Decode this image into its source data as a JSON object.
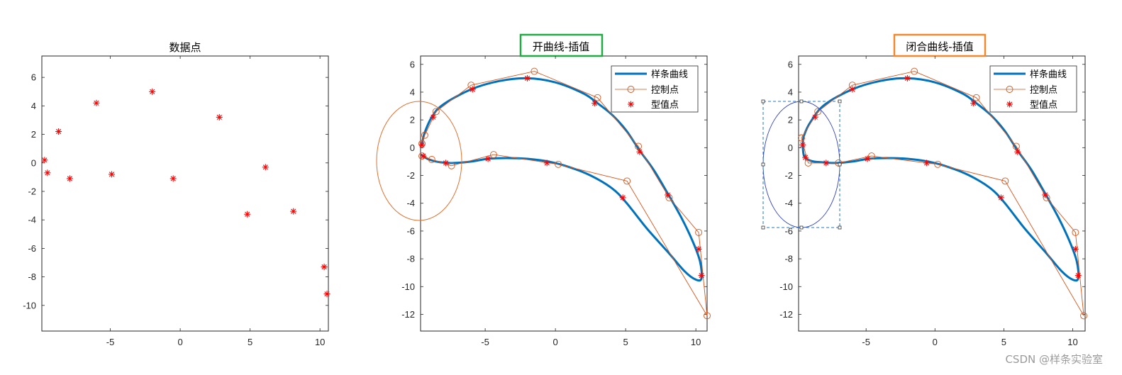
{
  "watermark": "CSDN @样条实验室",
  "colors": {
    "spline": "#0072BD",
    "control": "#D95319",
    "data_point": "#FF0000",
    "green_box": "#22AA44",
    "orange_box": "#F08A30",
    "ellipse_orange": "#E07030",
    "ellipse_blue": "#3040C0",
    "selection_box": "#1F77C8"
  },
  "chart_data": [
    {
      "type": "scatter",
      "title": "数据点",
      "xlim": [
        -9.9,
        10.6
      ],
      "ylim": [
        -11.8,
        7.5
      ],
      "xticks": [
        -5,
        0,
        5,
        10
      ],
      "yticks": [
        6,
        4,
        2,
        0,
        -2,
        -4,
        -6,
        -8,
        -10
      ],
      "series": [
        {
          "marker": "asterisk",
          "points": [
            [
              -9.7,
              0.2
            ],
            [
              -9.5,
              -0.7
            ],
            [
              -8.7,
              2.2
            ],
            [
              -7.9,
              -1.1
            ],
            [
              -6,
              4.2
            ],
            [
              -4.9,
              -0.8
            ],
            [
              -2,
              5
            ],
            [
              -0.5,
              -1.1
            ],
            [
              2.8,
              3.2
            ],
            [
              4.8,
              -3.6
            ],
            [
              6.1,
              -0.3
            ],
            [
              8.1,
              -3.4
            ],
            [
              10.3,
              -7.3
            ],
            [
              10.5,
              -9.2
            ]
          ]
        }
      ]
    },
    {
      "type": "line",
      "title": "开曲线-插值",
      "xlim": [
        -9.6,
        10.8
      ],
      "ylim": [
        -13.2,
        6.6
      ],
      "xticks": [
        -5,
        0,
        5,
        10
      ],
      "yticks": [
        6,
        4,
        2,
        0,
        -2,
        -4,
        -6,
        -8,
        -10,
        -12
      ],
      "legend_position": "top-right",
      "series": [
        {
          "name": "样条曲线",
          "style": "spline",
          "points": [
            [
              -9.5,
              0.25
            ],
            [
              -9.3,
              1.1
            ],
            [
              -8.8,
              2.2
            ],
            [
              -8,
              3.1
            ],
            [
              -6,
              4.2
            ],
            [
              -4,
              4.8
            ],
            [
              -2,
              5
            ],
            [
              0,
              4.7
            ],
            [
              2,
              3.9
            ],
            [
              3,
              3.2
            ],
            [
              4,
              2.4
            ],
            [
              5,
              1.3
            ],
            [
              6,
              -0.2
            ],
            [
              7,
              -1.6
            ],
            [
              8,
              -3.3
            ],
            [
              9,
              -5.1
            ],
            [
              9.8,
              -6.8
            ],
            [
              10.3,
              -8.2
            ],
            [
              10.4,
              -9.4
            ],
            [
              10,
              -9.5
            ],
            [
              9.2,
              -8.9
            ],
            [
              8,
              -7.5
            ],
            [
              6.5,
              -5.8
            ],
            [
              5,
              -3.9
            ],
            [
              4,
              -2.9
            ],
            [
              2.5,
              -2
            ],
            [
              1,
              -1.4
            ],
            [
              -0.5,
              -1
            ],
            [
              -2,
              -0.8
            ],
            [
              -3.5,
              -0.75
            ],
            [
              -4.8,
              -0.8
            ],
            [
              -6,
              -1
            ],
            [
              -7.2,
              -1.1
            ],
            [
              -8.2,
              -1.05
            ],
            [
              -9,
              -0.85
            ],
            [
              -9.5,
              -0.55
            ]
          ]
        },
        {
          "name": "控制点",
          "style": "control",
          "points": [
            [
              -9.5,
              0.3
            ],
            [
              -9.3,
              0.9
            ],
            [
              -8.5,
              2.6
            ],
            [
              -6,
              4.5
            ],
            [
              -1.5,
              5.5
            ],
            [
              3,
              3.6
            ],
            [
              5.9,
              0.1
            ],
            [
              8.1,
              -3.6
            ],
            [
              10.2,
              -6.1
            ],
            [
              10.8,
              -12.1
            ],
            [
              5.1,
              -2.4
            ],
            [
              0.2,
              -1.2
            ],
            [
              -4.4,
              -0.5
            ],
            [
              -7.4,
              -1.3
            ],
            [
              -8.8,
              -0.85
            ],
            [
              -9.5,
              -0.6
            ]
          ]
        },
        {
          "name": "型值点",
          "style": "data",
          "points": [
            [
              -9.5,
              0.2
            ],
            [
              -9.4,
              -0.6
            ],
            [
              -8.7,
              2.2
            ],
            [
              -7.8,
              -1.1
            ],
            [
              -5.9,
              4.2
            ],
            [
              -4.8,
              -0.8
            ],
            [
              -2,
              5
            ],
            [
              -0.6,
              -1.1
            ],
            [
              2.8,
              3.2
            ],
            [
              4.8,
              -3.6
            ],
            [
              6,
              -0.3
            ],
            [
              8,
              -3.4
            ],
            [
              10.2,
              -7.3
            ],
            [
              10.4,
              -9.2
            ]
          ]
        }
      ]
    },
    {
      "type": "line",
      "title": "闭合曲线-插值",
      "xlim": [
        -9.9,
        10.9
      ],
      "ylim": [
        -13.2,
        6.6
      ],
      "xticks": [
        -5,
        0,
        5,
        10
      ],
      "yticks": [
        6,
        4,
        2,
        0,
        -2,
        -4,
        -6,
        -8,
        -10,
        -12
      ],
      "legend_position": "top-right",
      "series": [
        {
          "name": "样条曲线",
          "style": "spline",
          "points": [
            [
              -9.6,
              0.25
            ],
            [
              -9.5,
              0.9
            ],
            [
              -9,
              1.9
            ],
            [
              -8,
              3.1
            ],
            [
              -6,
              4.2
            ],
            [
              -4,
              4.8
            ],
            [
              -2,
              5
            ],
            [
              0,
              4.7
            ],
            [
              2,
              3.9
            ],
            [
              3,
              3.2
            ],
            [
              4,
              2.4
            ],
            [
              5,
              1.3
            ],
            [
              6,
              -0.2
            ],
            [
              7,
              -1.6
            ],
            [
              8,
              -3.3
            ],
            [
              9,
              -5.1
            ],
            [
              9.8,
              -6.8
            ],
            [
              10.3,
              -8.2
            ],
            [
              10.4,
              -9.4
            ],
            [
              10,
              -9.5
            ],
            [
              9.2,
              -8.9
            ],
            [
              8,
              -7.5
            ],
            [
              6.5,
              -5.8
            ],
            [
              5,
              -3.9
            ],
            [
              4,
              -2.9
            ],
            [
              2.5,
              -2
            ],
            [
              1,
              -1.4
            ],
            [
              -0.5,
              -1
            ],
            [
              -2,
              -0.8
            ],
            [
              -3.5,
              -0.75
            ],
            [
              -4.8,
              -0.8
            ],
            [
              -6,
              -1
            ],
            [
              -7.2,
              -1.1
            ],
            [
              -8.2,
              -1.05
            ],
            [
              -9,
              -0.95
            ],
            [
              -9.5,
              -0.6
            ],
            [
              -9.6,
              0.25
            ]
          ]
        },
        {
          "name": "控制点",
          "style": "control",
          "points": [
            [
              -9.7,
              0.7
            ],
            [
              -8.5,
              2.6
            ],
            [
              -6,
              4.5
            ],
            [
              -1.5,
              5.5
            ],
            [
              3,
              3.6
            ],
            [
              5.9,
              0.1
            ],
            [
              8.1,
              -3.6
            ],
            [
              10.2,
              -6.1
            ],
            [
              10.8,
              -12.1
            ],
            [
              5.1,
              -2.4
            ],
            [
              0.2,
              -1.2
            ],
            [
              -4.6,
              -0.6
            ],
            [
              -7,
              -1.1
            ],
            [
              -9.2,
              -1.1
            ],
            [
              -9.7,
              0.7
            ]
          ]
        },
        {
          "name": "型值点",
          "style": "data",
          "points": [
            [
              -9.6,
              0.2
            ],
            [
              -9.4,
              -0.7
            ],
            [
              -8.7,
              2.2
            ],
            [
              -7.9,
              -1.1
            ],
            [
              -6,
              4.2
            ],
            [
              -4.9,
              -0.8
            ],
            [
              -2,
              5
            ],
            [
              -0.6,
              -1.1
            ],
            [
              2.8,
              3.2
            ],
            [
              4.8,
              -3.6
            ],
            [
              6,
              -0.3
            ],
            [
              8,
              -3.4
            ],
            [
              10.2,
              -7.3
            ],
            [
              10.4,
              -9.2
            ]
          ]
        }
      ]
    }
  ]
}
